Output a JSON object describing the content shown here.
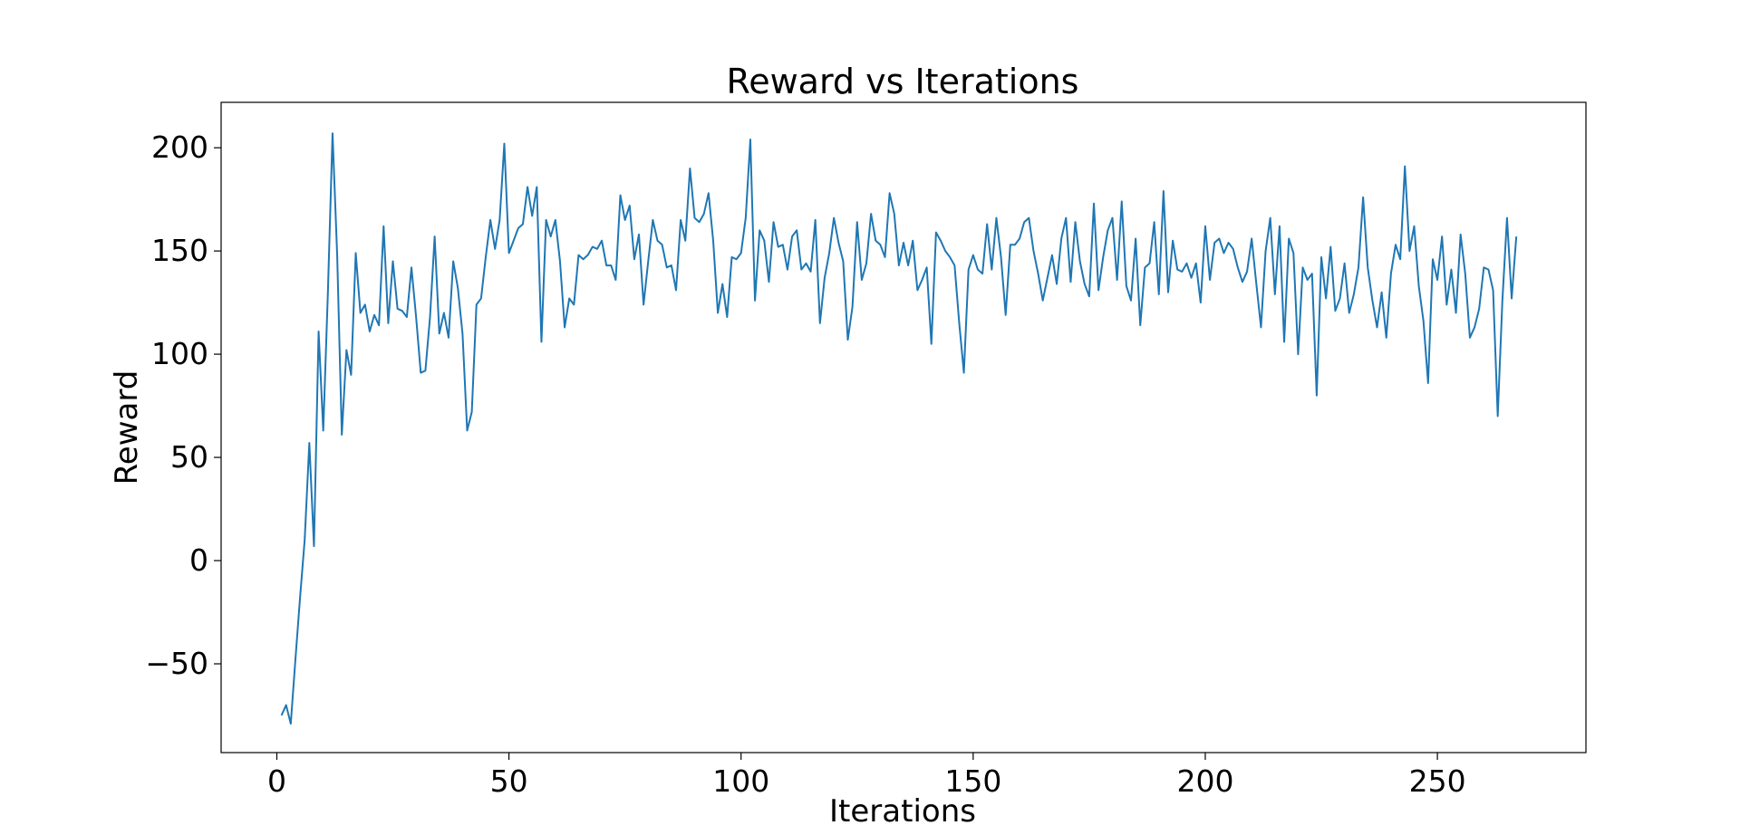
{
  "chart_data": {
    "type": "line",
    "title": "Reward vs Iterations",
    "xlabel": "Iterations",
    "ylabel": "Reward",
    "xlim": [
      -12,
      282
    ],
    "ylim": [
      -93,
      222
    ],
    "xticks": [
      0,
      50,
      100,
      150,
      200,
      250
    ],
    "yticks": [
      -50,
      0,
      50,
      100,
      150,
      200
    ],
    "xtick_labels": [
      "0",
      "50",
      "100",
      "150",
      "200",
      "250"
    ],
    "ytick_labels": [
      "−50",
      "0",
      "50",
      "100",
      "150",
      "200"
    ],
    "grid": false,
    "series": [
      {
        "color": "#1f77b4",
        "x_start": 1,
        "values": [
          -75,
          -70,
          -79,
          -48,
          -18,
          10,
          57,
          7,
          111,
          63,
          130,
          207,
          148,
          61,
          102,
          90,
          149,
          120,
          124,
          111,
          119,
          114,
          162,
          115,
          145,
          122,
          121,
          118,
          142,
          118,
          91,
          92,
          118,
          157,
          110,
          120,
          108,
          145,
          132,
          110,
          63,
          72,
          124,
          127,
          147,
          165,
          151,
          165,
          202,
          149,
          155,
          161,
          163,
          181,
          167,
          181,
          106,
          165,
          157,
          165,
          145,
          113,
          127,
          124,
          148,
          146,
          148,
          152,
          151,
          155,
          143,
          143,
          136,
          177,
          165,
          172,
          146,
          158,
          124,
          145,
          165,
          155,
          153,
          142,
          143,
          131,
          165,
          155,
          190,
          166,
          164,
          168,
          178,
          155,
          120,
          134,
          118,
          147,
          146,
          149,
          166,
          204,
          126,
          160,
          155,
          135,
          164,
          152,
          153,
          141,
          157,
          160,
          141,
          144,
          140,
          165,
          115,
          137,
          149,
          166,
          154,
          145,
          107,
          123,
          164,
          136,
          144,
          168,
          155,
          153,
          147,
          178,
          168,
          143,
          154,
          143,
          155,
          131,
          136,
          142,
          105,
          159,
          155,
          150,
          147,
          143,
          115,
          91,
          141,
          148,
          141,
          139,
          163,
          141,
          166,
          147,
          119,
          153,
          153,
          156,
          164,
          166,
          150,
          139,
          126,
          137,
          148,
          134,
          156,
          166,
          135,
          164,
          145,
          134,
          128,
          173,
          131,
          147,
          160,
          166,
          136,
          174,
          133,
          126,
          156,
          114,
          142,
          144,
          164,
          129,
          179,
          130,
          155,
          141,
          140,
          144,
          137,
          144,
          125,
          162,
          136,
          154,
          156,
          149,
          154,
          151,
          142,
          135,
          140,
          156,
          134,
          113,
          150,
          166,
          129,
          162,
          106,
          156,
          149,
          100,
          142,
          136,
          139,
          80,
          147,
          127,
          152,
          121,
          127,
          144,
          120,
          129,
          142,
          176,
          142,
          126,
          113,
          130,
          108,
          139,
          153,
          146,
          191,
          150,
          162,
          133,
          116,
          86,
          146,
          136,
          157,
          124,
          141,
          120,
          158,
          139,
          108,
          113,
          122,
          142,
          141,
          131,
          70,
          126,
          166,
          127,
          157
        ]
      }
    ]
  }
}
